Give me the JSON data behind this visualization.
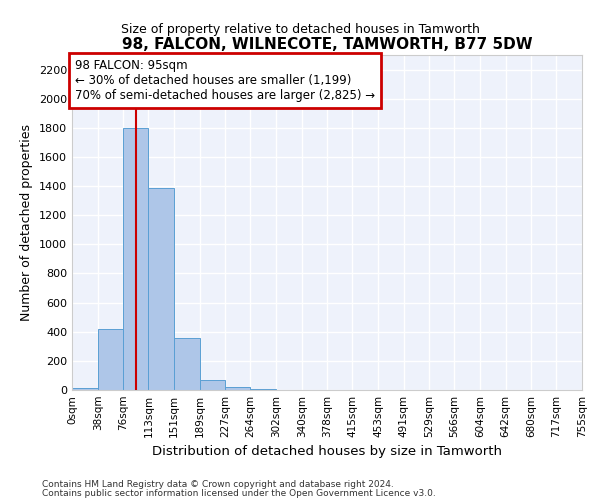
{
  "title": "98, FALCON, WILNECOTE, TAMWORTH, B77 5DW",
  "subtitle": "Size of property relative to detached houses in Tamworth",
  "xlabel": "Distribution of detached houses by size in Tamworth",
  "ylabel": "Number of detached properties",
  "footer_line1": "Contains HM Land Registry data © Crown copyright and database right 2024.",
  "footer_line2": "Contains public sector information licensed under the Open Government Licence v3.0.",
  "bar_edges": [
    0,
    38,
    76,
    113,
    151,
    189,
    227,
    264,
    302,
    340,
    378,
    415,
    453,
    491,
    529,
    566,
    604,
    642,
    680,
    717,
    755
  ],
  "bar_heights": [
    15,
    420,
    1800,
    1390,
    355,
    70,
    22,
    8,
    2,
    0,
    0,
    0,
    0,
    0,
    0,
    0,
    0,
    0,
    0,
    0
  ],
  "bar_color": "#aec6e8",
  "bar_edge_color": "#5a9fd4",
  "bg_color": "#eef2fb",
  "grid_color": "#ffffff",
  "subject_x": 95,
  "subject_line_color": "#cc0000",
  "annotation_line1": "98 FALCON: 95sqm",
  "annotation_line2": "← 30% of detached houses are smaller (1,199)",
  "annotation_line3": "70% of semi-detached houses are larger (2,825) →",
  "annotation_box_color": "#cc0000",
  "ylim": [
    0,
    2300
  ],
  "xlim": [
    0,
    755
  ],
  "yticks": [
    0,
    200,
    400,
    600,
    800,
    1000,
    1200,
    1400,
    1600,
    1800,
    2000,
    2200
  ],
  "tick_labels": [
    "0sqm",
    "38sqm",
    "76sqm",
    "113sqm",
    "151sqm",
    "189sqm",
    "227sqm",
    "264sqm",
    "302sqm",
    "340sqm",
    "378sqm",
    "415sqm",
    "453sqm",
    "491sqm",
    "529sqm",
    "566sqm",
    "604sqm",
    "642sqm",
    "680sqm",
    "717sqm",
    "755sqm"
  ]
}
